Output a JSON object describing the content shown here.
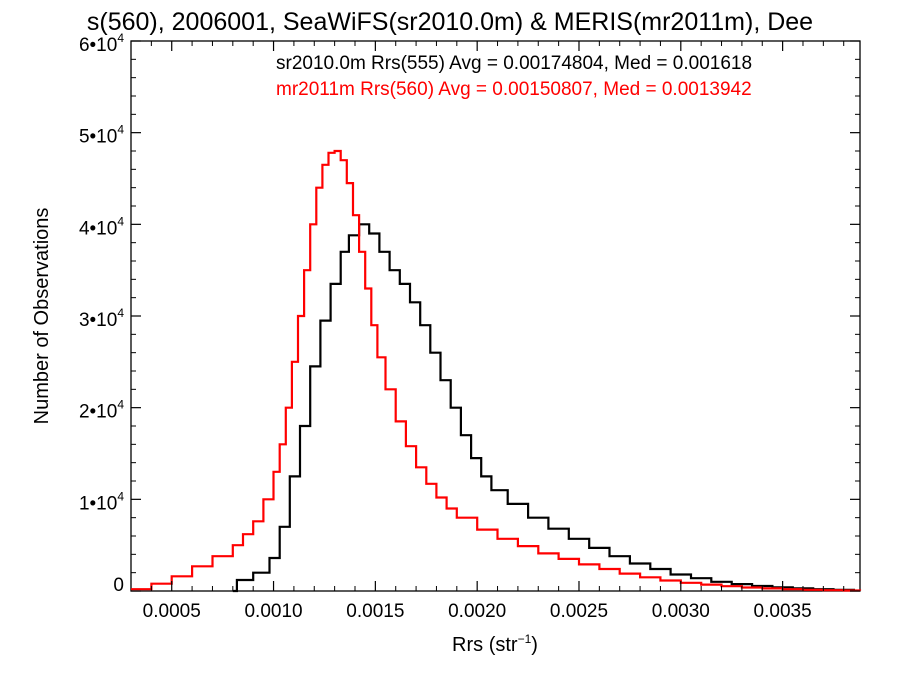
{
  "chart_data": {
    "type": "line",
    "title": "s(560), 2006001, SeaWiFS(sr2010.0m) & MERIS(mr2011m), Dee",
    "xlabel": "Rrs (str",
    "xlabel_sup": "−1",
    "xlabel_close": ")",
    "ylabel": "Number of Observations",
    "xlim": [
      0.0003,
      0.00388
    ],
    "ylim": [
      0,
      60000
    ],
    "x_ticks": [
      {
        "value": 0.0005,
        "label": "0.0005"
      },
      {
        "value": 0.001,
        "label": "0.0010"
      },
      {
        "value": 0.0015,
        "label": "0.0015"
      },
      {
        "value": 0.002,
        "label": "0.0020"
      },
      {
        "value": 0.0025,
        "label": "0.0025"
      },
      {
        "value": 0.003,
        "label": "0.0030"
      },
      {
        "value": 0.0035,
        "label": "0.0035"
      }
    ],
    "y_ticks": [
      {
        "value": 0,
        "label": "0",
        "exp": ""
      },
      {
        "value": 10000,
        "label": "1•10",
        "exp": "4"
      },
      {
        "value": 20000,
        "label": "2•10",
        "exp": "4"
      },
      {
        "value": 30000,
        "label": "3•10",
        "exp": "4"
      },
      {
        "value": 40000,
        "label": "4•10",
        "exp": "4"
      },
      {
        "value": 50000,
        "label": "5•10",
        "exp": "4"
      },
      {
        "value": 60000,
        "label": "6•10",
        "exp": "4"
      }
    ],
    "annotations": [
      {
        "text": "sr2010.0m Rrs(555) Avg = 0.00174804, Med = 0.001618",
        "color": "#000000"
      },
      {
        "text": "mr2011m Rrs(560) Avg = 0.00150807, Med = 0.0013942",
        "color": "#ff0000"
      }
    ],
    "series": [
      {
        "color": "#000000",
        "points": [
          [
            0.0008,
            0
          ],
          [
            0.00082,
            1200
          ],
          [
            0.0009,
            2000
          ],
          [
            0.00098,
            3600
          ],
          [
            0.00103,
            7000
          ],
          [
            0.00108,
            12500
          ],
          [
            0.00113,
            18000
          ],
          [
            0.00118,
            24500
          ],
          [
            0.00123,
            29500
          ],
          [
            0.00128,
            33500
          ],
          [
            0.00133,
            37000
          ],
          [
            0.00137,
            38800
          ],
          [
            0.00142,
            40000
          ],
          [
            0.00147,
            39000
          ],
          [
            0.00152,
            37000
          ],
          [
            0.00157,
            35000
          ],
          [
            0.00162,
            33500
          ],
          [
            0.00167,
            31500
          ],
          [
            0.00172,
            29000
          ],
          [
            0.00177,
            26000
          ],
          [
            0.00182,
            23000
          ],
          [
            0.00187,
            20000
          ],
          [
            0.00192,
            17000
          ],
          [
            0.00197,
            14500
          ],
          [
            0.00202,
            12500
          ],
          [
            0.00207,
            11000
          ],
          [
            0.00215,
            9500
          ],
          [
            0.00225,
            8000
          ],
          [
            0.00235,
            6800
          ],
          [
            0.00245,
            5700
          ],
          [
            0.00255,
            4700
          ],
          [
            0.00265,
            3800
          ],
          [
            0.00275,
            3000
          ],
          [
            0.00285,
            2400
          ],
          [
            0.00295,
            1800
          ],
          [
            0.00305,
            1400
          ],
          [
            0.00315,
            1000
          ],
          [
            0.00325,
            750
          ],
          [
            0.00335,
            550
          ],
          [
            0.00345,
            400
          ],
          [
            0.00355,
            300
          ],
          [
            0.00365,
            200
          ],
          [
            0.00375,
            120
          ],
          [
            0.00385,
            80
          ]
        ]
      },
      {
        "color": "#ff0000",
        "points": [
          [
            0.0003,
            200
          ],
          [
            0.0004,
            800
          ],
          [
            0.0005,
            1600
          ],
          [
            0.0006,
            2700
          ],
          [
            0.0007,
            3800
          ],
          [
            0.0008,
            5000
          ],
          [
            0.00085,
            6200
          ],
          [
            0.0009,
            7600
          ],
          [
            0.00095,
            10000
          ],
          [
            0.001,
            13000
          ],
          [
            0.00103,
            16000
          ],
          [
            0.00106,
            20000
          ],
          [
            0.00109,
            25000
          ],
          [
            0.00112,
            30000
          ],
          [
            0.00115,
            35000
          ],
          [
            0.00118,
            40000
          ],
          [
            0.00121,
            44000
          ],
          [
            0.00124,
            46500
          ],
          [
            0.00127,
            47800
          ],
          [
            0.0013,
            48000
          ],
          [
            0.00133,
            47000
          ],
          [
            0.00136,
            44500
          ],
          [
            0.00139,
            41000
          ],
          [
            0.00142,
            37000
          ],
          [
            0.00145,
            33000
          ],
          [
            0.00148,
            29000
          ],
          [
            0.00151,
            25500
          ],
          [
            0.00155,
            22000
          ],
          [
            0.0016,
            18500
          ],
          [
            0.00165,
            15800
          ],
          [
            0.0017,
            13500
          ],
          [
            0.00175,
            11700
          ],
          [
            0.0018,
            10200
          ],
          [
            0.00185,
            9000
          ],
          [
            0.0019,
            8000
          ],
          [
            0.002,
            6700
          ],
          [
            0.0021,
            5700
          ],
          [
            0.0022,
            4900
          ],
          [
            0.0023,
            4100
          ],
          [
            0.0024,
            3500
          ],
          [
            0.0025,
            2900
          ],
          [
            0.0026,
            2400
          ],
          [
            0.0027,
            1900
          ],
          [
            0.0028,
            1500
          ],
          [
            0.0029,
            1150
          ],
          [
            0.003,
            900
          ],
          [
            0.0031,
            700
          ],
          [
            0.0032,
            520
          ],
          [
            0.0033,
            380
          ],
          [
            0.0034,
            280
          ],
          [
            0.0035,
            200
          ],
          [
            0.0036,
            130
          ],
          [
            0.0037,
            90
          ],
          [
            0.0038,
            60
          ],
          [
            0.00388,
            40
          ]
        ]
      }
    ]
  }
}
